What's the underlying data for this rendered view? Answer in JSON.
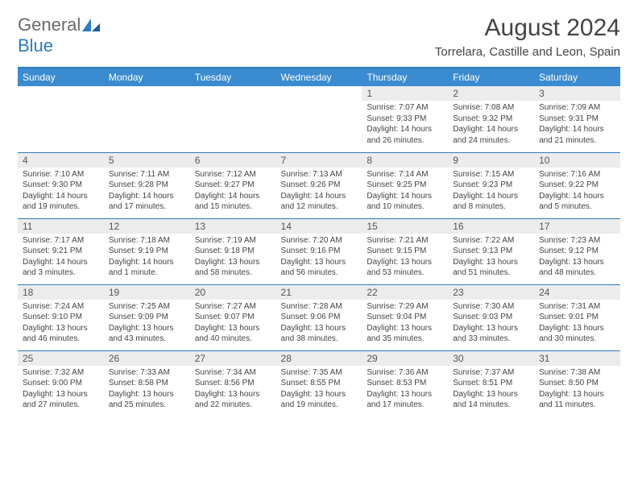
{
  "logo": {
    "part1": "General",
    "part2": "Blue"
  },
  "title": "August 2024",
  "location": "Torrelara, Castille and Leon, Spain",
  "colors": {
    "header_bg": "#3a8bd0",
    "header_text": "#ffffff",
    "border": "#2d7bc0",
    "daynum_bg": "#ececec",
    "text": "#444444",
    "logo_gray": "#6a6a6a",
    "logo_blue": "#2d7bc0"
  },
  "typography": {
    "title_fontsize": 30,
    "location_fontsize": 15,
    "header_fontsize": 12,
    "cell_fontsize": 10
  },
  "day_headers": [
    "Sunday",
    "Monday",
    "Tuesday",
    "Wednesday",
    "Thursday",
    "Friday",
    "Saturday"
  ],
  "weeks": [
    [
      null,
      null,
      null,
      null,
      {
        "n": "1",
        "sr": "Sunrise: 7:07 AM",
        "ss": "Sunset: 9:33 PM",
        "dl": "Daylight: 14 hours and 26 minutes."
      },
      {
        "n": "2",
        "sr": "Sunrise: 7:08 AM",
        "ss": "Sunset: 9:32 PM",
        "dl": "Daylight: 14 hours and 24 minutes."
      },
      {
        "n": "3",
        "sr": "Sunrise: 7:09 AM",
        "ss": "Sunset: 9:31 PM",
        "dl": "Daylight: 14 hours and 21 minutes."
      }
    ],
    [
      {
        "n": "4",
        "sr": "Sunrise: 7:10 AM",
        "ss": "Sunset: 9:30 PM",
        "dl": "Daylight: 14 hours and 19 minutes."
      },
      {
        "n": "5",
        "sr": "Sunrise: 7:11 AM",
        "ss": "Sunset: 9:28 PM",
        "dl": "Daylight: 14 hours and 17 minutes."
      },
      {
        "n": "6",
        "sr": "Sunrise: 7:12 AM",
        "ss": "Sunset: 9:27 PM",
        "dl": "Daylight: 14 hours and 15 minutes."
      },
      {
        "n": "7",
        "sr": "Sunrise: 7:13 AM",
        "ss": "Sunset: 9:26 PM",
        "dl": "Daylight: 14 hours and 12 minutes."
      },
      {
        "n": "8",
        "sr": "Sunrise: 7:14 AM",
        "ss": "Sunset: 9:25 PM",
        "dl": "Daylight: 14 hours and 10 minutes."
      },
      {
        "n": "9",
        "sr": "Sunrise: 7:15 AM",
        "ss": "Sunset: 9:23 PM",
        "dl": "Daylight: 14 hours and 8 minutes."
      },
      {
        "n": "10",
        "sr": "Sunrise: 7:16 AM",
        "ss": "Sunset: 9:22 PM",
        "dl": "Daylight: 14 hours and 5 minutes."
      }
    ],
    [
      {
        "n": "11",
        "sr": "Sunrise: 7:17 AM",
        "ss": "Sunset: 9:21 PM",
        "dl": "Daylight: 14 hours and 3 minutes."
      },
      {
        "n": "12",
        "sr": "Sunrise: 7:18 AM",
        "ss": "Sunset: 9:19 PM",
        "dl": "Daylight: 14 hours and 1 minute."
      },
      {
        "n": "13",
        "sr": "Sunrise: 7:19 AM",
        "ss": "Sunset: 9:18 PM",
        "dl": "Daylight: 13 hours and 58 minutes."
      },
      {
        "n": "14",
        "sr": "Sunrise: 7:20 AM",
        "ss": "Sunset: 9:16 PM",
        "dl": "Daylight: 13 hours and 56 minutes."
      },
      {
        "n": "15",
        "sr": "Sunrise: 7:21 AM",
        "ss": "Sunset: 9:15 PM",
        "dl": "Daylight: 13 hours and 53 minutes."
      },
      {
        "n": "16",
        "sr": "Sunrise: 7:22 AM",
        "ss": "Sunset: 9:13 PM",
        "dl": "Daylight: 13 hours and 51 minutes."
      },
      {
        "n": "17",
        "sr": "Sunrise: 7:23 AM",
        "ss": "Sunset: 9:12 PM",
        "dl": "Daylight: 13 hours and 48 minutes."
      }
    ],
    [
      {
        "n": "18",
        "sr": "Sunrise: 7:24 AM",
        "ss": "Sunset: 9:10 PM",
        "dl": "Daylight: 13 hours and 46 minutes."
      },
      {
        "n": "19",
        "sr": "Sunrise: 7:25 AM",
        "ss": "Sunset: 9:09 PM",
        "dl": "Daylight: 13 hours and 43 minutes."
      },
      {
        "n": "20",
        "sr": "Sunrise: 7:27 AM",
        "ss": "Sunset: 9:07 PM",
        "dl": "Daylight: 13 hours and 40 minutes."
      },
      {
        "n": "21",
        "sr": "Sunrise: 7:28 AM",
        "ss": "Sunset: 9:06 PM",
        "dl": "Daylight: 13 hours and 38 minutes."
      },
      {
        "n": "22",
        "sr": "Sunrise: 7:29 AM",
        "ss": "Sunset: 9:04 PM",
        "dl": "Daylight: 13 hours and 35 minutes."
      },
      {
        "n": "23",
        "sr": "Sunrise: 7:30 AM",
        "ss": "Sunset: 9:03 PM",
        "dl": "Daylight: 13 hours and 33 minutes."
      },
      {
        "n": "24",
        "sr": "Sunrise: 7:31 AM",
        "ss": "Sunset: 9:01 PM",
        "dl": "Daylight: 13 hours and 30 minutes."
      }
    ],
    [
      {
        "n": "25",
        "sr": "Sunrise: 7:32 AM",
        "ss": "Sunset: 9:00 PM",
        "dl": "Daylight: 13 hours and 27 minutes."
      },
      {
        "n": "26",
        "sr": "Sunrise: 7:33 AM",
        "ss": "Sunset: 8:58 PM",
        "dl": "Daylight: 13 hours and 25 minutes."
      },
      {
        "n": "27",
        "sr": "Sunrise: 7:34 AM",
        "ss": "Sunset: 8:56 PM",
        "dl": "Daylight: 13 hours and 22 minutes."
      },
      {
        "n": "28",
        "sr": "Sunrise: 7:35 AM",
        "ss": "Sunset: 8:55 PM",
        "dl": "Daylight: 13 hours and 19 minutes."
      },
      {
        "n": "29",
        "sr": "Sunrise: 7:36 AM",
        "ss": "Sunset: 8:53 PM",
        "dl": "Daylight: 13 hours and 17 minutes."
      },
      {
        "n": "30",
        "sr": "Sunrise: 7:37 AM",
        "ss": "Sunset: 8:51 PM",
        "dl": "Daylight: 13 hours and 14 minutes."
      },
      {
        "n": "31",
        "sr": "Sunrise: 7:38 AM",
        "ss": "Sunset: 8:50 PM",
        "dl": "Daylight: 13 hours and 11 minutes."
      }
    ]
  ]
}
